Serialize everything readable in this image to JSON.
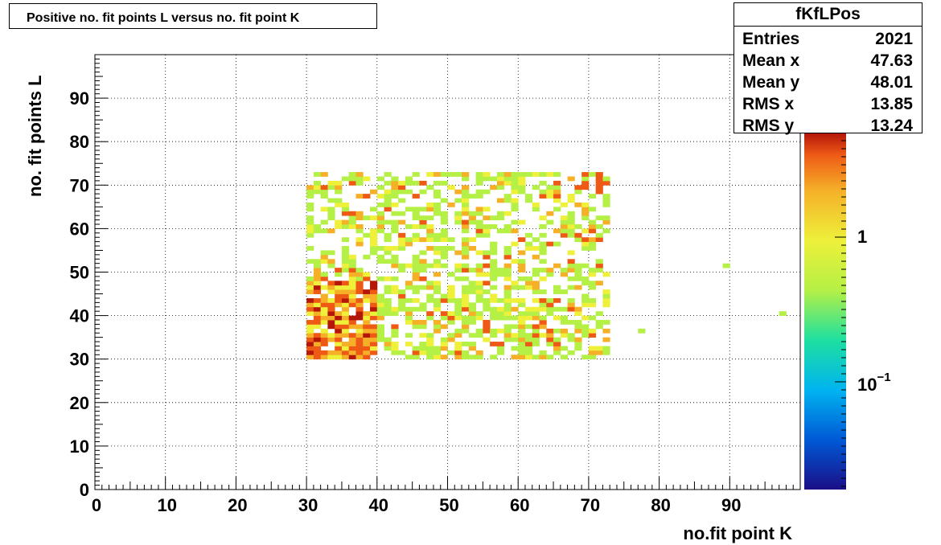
{
  "chart_data": {
    "type": "heatmap",
    "title": "Positive no. fit points L versus no. fit point K",
    "xlabel": "no.fit point K",
    "ylabel": "no. fit points  L",
    "xlim": [
      0,
      100
    ],
    "ylim": [
      0,
      100
    ],
    "x_ticks": [
      "0",
      "10",
      "20",
      "30",
      "40",
      "50",
      "60",
      "70",
      "80",
      "90"
    ],
    "y_ticks": [
      "0",
      "10",
      "20",
      "30",
      "40",
      "50",
      "60",
      "70",
      "80",
      "90"
    ],
    "grid": true,
    "z_scale": "log",
    "colorbar_labels": [
      {
        "base": "1",
        "exponent": ""
      },
      {
        "base": "10",
        "exponent": "−1"
      }
    ],
    "palette": [
      "#1a0f87",
      "#0059d6",
      "#00b4f0",
      "#1ee0a0",
      "#b5f046",
      "#eef03a",
      "#f5b028",
      "#ee5a16",
      "#b41608"
    ],
    "populated_region": {
      "k": [
        30,
        72
      ],
      "l": [
        30,
        72
      ]
    },
    "outlier_cells": [
      {
        "k": 77,
        "l": 36
      },
      {
        "k": 89,
        "l": 51
      },
      {
        "k": 97,
        "l": 40
      }
    ],
    "stats": {
      "name": "fKfLPos",
      "rows": [
        {
          "label": "Entries",
          "value": "2021"
        },
        {
          "label": "Mean x",
          "value": "47.63"
        },
        {
          "label": "Mean y",
          "value": "48.01"
        },
        {
          "label": "RMS x",
          "value": "13.85"
        },
        {
          "label": "RMS y",
          "value": "13.24"
        }
      ]
    }
  }
}
